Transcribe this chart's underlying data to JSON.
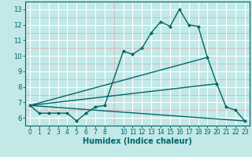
{
  "xlabel": "Humidex (Indice chaleur)",
  "background_color": "#c2e8e8",
  "grid_color_major": "#ffffff",
  "grid_color_minor": "#dba8a8",
  "line_color": "#006666",
  "xlim": [
    -0.5,
    23.5
  ],
  "ylim": [
    5.5,
    13.5
  ],
  "xticks": [
    0,
    1,
    2,
    3,
    4,
    5,
    6,
    7,
    8,
    10,
    11,
    12,
    13,
    14,
    15,
    16,
    17,
    18,
    19,
    20,
    21,
    22,
    23
  ],
  "yticks": [
    6,
    7,
    8,
    9,
    10,
    11,
    12,
    13
  ],
  "line1_x": [
    0,
    1,
    2,
    3,
    4,
    5,
    6,
    7,
    8,
    10,
    11,
    12,
    13,
    14,
    15,
    16,
    17,
    18,
    19,
    20,
    21,
    22,
    23
  ],
  "line1_y": [
    6.8,
    6.3,
    6.3,
    6.3,
    6.3,
    5.8,
    6.3,
    6.7,
    6.8,
    10.3,
    10.1,
    10.5,
    11.5,
    12.2,
    11.9,
    13.0,
    12.0,
    11.9,
    9.9,
    8.2,
    6.7,
    6.5,
    5.8
  ],
  "line2_x": [
    0,
    23
  ],
  "line2_y": [
    6.8,
    5.8
  ],
  "line3_x": [
    0,
    19
  ],
  "line3_y": [
    6.8,
    9.9
  ],
  "line4_x": [
    0,
    20
  ],
  "line4_y": [
    6.8,
    8.2
  ]
}
